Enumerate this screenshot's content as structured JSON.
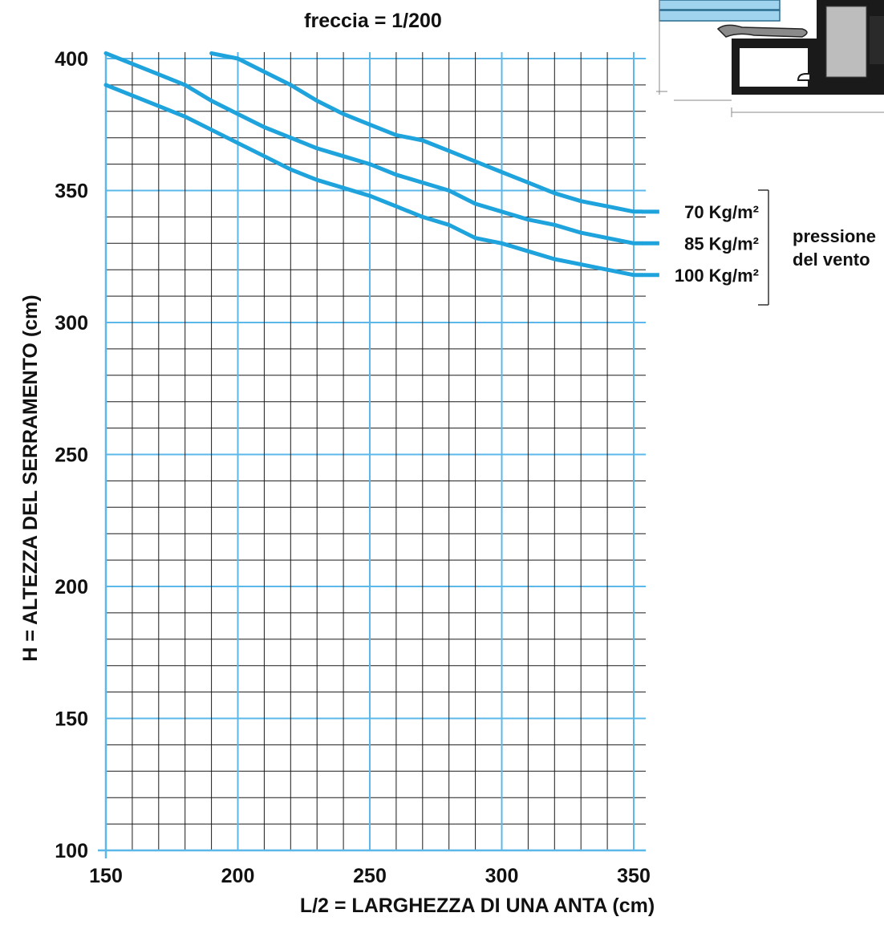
{
  "chart_data": {
    "type": "line",
    "title": "freccia = 1/200",
    "xlabel": "L/2  =  LARGHEZZA DI UNA ANTA  (cm)",
    "ylabel": "H  =  ALTEZZA  DEL  SERRAMENTO  (cm)",
    "xlim": [
      150,
      350
    ],
    "ylim": [
      100,
      400
    ],
    "x_ticks": [
      "150",
      "200",
      "250",
      "300",
      "350"
    ],
    "y_ticks": [
      "100",
      "150",
      "200",
      "250",
      "300",
      "350",
      "400"
    ],
    "grid": true,
    "legend_title": [
      "pressione",
      "del vento"
    ],
    "colors": {
      "curve": "#1ea3dc",
      "major_grid": "#5bb8e8",
      "minor_grid": "#1a1a1a"
    },
    "series": [
      {
        "name": "70 Kg/m²",
        "x": [
          190,
          200,
          210,
          220,
          230,
          240,
          250,
          260,
          270,
          280,
          290,
          300,
          310,
          320,
          330,
          340,
          350,
          353
        ],
        "y": [
          402,
          400,
          395,
          390,
          384,
          379,
          375,
          371,
          369,
          365,
          361,
          357,
          353,
          349,
          346,
          344,
          342,
          342
        ]
      },
      {
        "name": "85 Kg/m²",
        "x": [
          150,
          160,
          170,
          180,
          190,
          200,
          210,
          220,
          230,
          240,
          250,
          260,
          270,
          280,
          290,
          300,
          310,
          320,
          330,
          340,
          350,
          353
        ],
        "y": [
          402,
          398,
          394,
          390,
          384,
          379,
          374,
          370,
          366,
          363,
          360,
          356,
          353,
          350,
          345,
          342,
          339,
          337,
          334,
          332,
          330,
          330
        ]
      },
      {
        "name": "100 Kg/m²",
        "x": [
          150,
          160,
          170,
          180,
          190,
          200,
          210,
          220,
          230,
          240,
          250,
          260,
          270,
          280,
          290,
          300,
          310,
          320,
          330,
          340,
          350,
          353
        ],
        "y": [
          390,
          386,
          382,
          378,
          373,
          368,
          363,
          358,
          354,
          351,
          348,
          344,
          340,
          337,
          332,
          330,
          327,
          324,
          322,
          320,
          318,
          318
        ]
      }
    ]
  }
}
